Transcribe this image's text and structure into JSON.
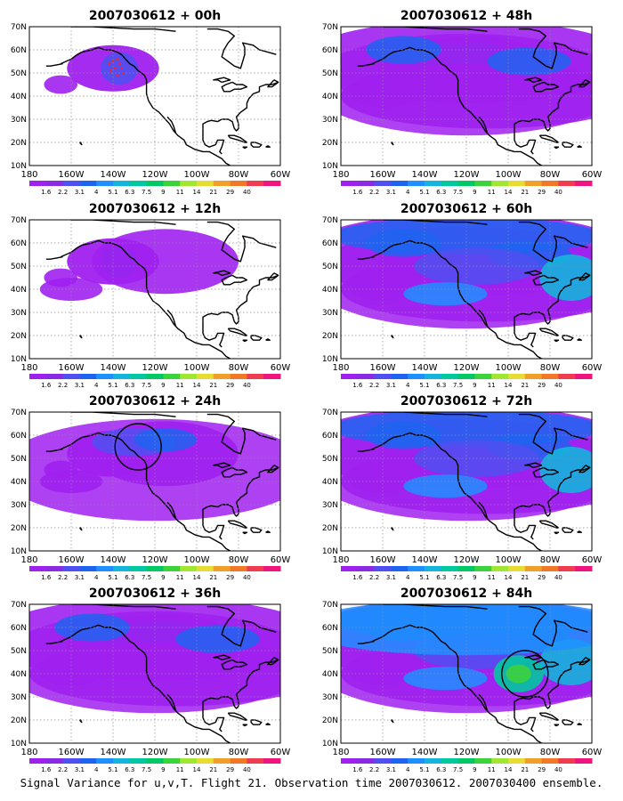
{
  "panels": [
    {
      "title": "2007030612 + 00h",
      "level": 0.15,
      "circle": false,
      "dots": true
    },
    {
      "title": "2007030612 + 48h",
      "level": 0.55,
      "circle": false,
      "dots": false
    },
    {
      "title": "2007030612 + 12h",
      "level": 0.25,
      "circle": false,
      "dots": false
    },
    {
      "title": "2007030612 + 60h",
      "level": 0.65,
      "circle": false,
      "dots": false
    },
    {
      "title": "2007030612 + 24h",
      "level": 0.4,
      "circle": true,
      "dots": false
    },
    {
      "title": "2007030612 + 72h",
      "level": 0.7,
      "circle": false,
      "dots": false
    },
    {
      "title": "2007030612 + 36h",
      "level": 0.5,
      "circle": false,
      "dots": false
    },
    {
      "title": "2007030612 + 84h",
      "level": 0.8,
      "circle": true,
      "dots": false
    }
  ],
  "axes": {
    "lat_labels": [
      "70N",
      "60N",
      "50N",
      "40N",
      "30N",
      "20N",
      "10N"
    ],
    "lon_labels": [
      "180",
      "160W",
      "140W",
      "120W",
      "100W",
      "80W",
      "60W"
    ]
  },
  "colorbar": {
    "labels": [
      "1.6",
      "2.2",
      "3.1",
      "4",
      "5.1",
      "6.3",
      "7.5",
      "9",
      "11",
      "14",
      "21",
      "29",
      "40"
    ],
    "colors": [
      "#a020f0",
      "#8a2be2",
      "#5050f0",
      "#1e64f0",
      "#1e90ff",
      "#14b4dc",
      "#00c8a0",
      "#00c864",
      "#3cd23c",
      "#a0e632",
      "#e6dc32",
      "#f0a028",
      "#f07828",
      "#f03c50",
      "#f0147e"
    ]
  },
  "caption": "Signal Variance for u,v,T. Flight 21. Observation time 2007030612. 2007030400 ensemble."
}
